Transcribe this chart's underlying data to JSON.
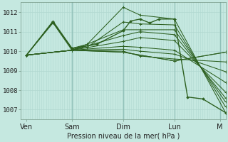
{
  "xlabel": "Pression niveau de la mer( hPa )",
  "bg_color": "#c5e8e0",
  "grid_color_minor": "#b0d8d0",
  "grid_color_major": "#90c0b8",
  "line_color": "#2d6020",
  "ylim": [
    1006.5,
    1012.5
  ],
  "xlim": [
    0,
    108
  ],
  "xtick_positions": [
    3,
    27,
    54,
    81,
    105
  ],
  "xtick_labels": [
    "Ven",
    "Sam",
    "Dim",
    "Lun",
    "M"
  ],
  "ytick_values": [
    1007,
    1008,
    1009,
    1010,
    1011,
    1012
  ],
  "vline_positions": [
    27,
    54,
    81,
    105
  ],
  "origin_x": 3,
  "origin_y": 1009.8,
  "lines": [
    {
      "x": [
        3,
        17,
        27,
        35,
        54,
        63,
        81,
        108
      ],
      "y": [
        1009.8,
        1011.55,
        1010.15,
        1010.35,
        1012.25,
        1011.85,
        1011.65,
        1006.85
      ]
    },
    {
      "x": [
        3,
        17,
        27,
        35,
        54,
        63,
        81,
        108
      ],
      "y": [
        1009.8,
        1011.5,
        1010.1,
        1010.2,
        1011.5,
        1011.4,
        1011.35,
        1007.15
      ]
    },
    {
      "x": [
        3,
        17,
        27,
        54,
        63,
        81,
        108
      ],
      "y": [
        1009.8,
        1011.45,
        1010.05,
        1011.1,
        1011.1,
        1011.1,
        1007.4
      ]
    },
    {
      "x": [
        3,
        27,
        54,
        63,
        81,
        108
      ],
      "y": [
        1009.8,
        1010.05,
        1010.8,
        1011.0,
        1010.85,
        1007.6
      ]
    },
    {
      "x": [
        3,
        27,
        54,
        63,
        81,
        108
      ],
      "y": [
        1009.8,
        1010.05,
        1010.5,
        1010.7,
        1010.55,
        1007.9
      ]
    },
    {
      "x": [
        3,
        27,
        54,
        63,
        81,
        108
      ],
      "y": [
        1009.8,
        1010.05,
        1010.25,
        1010.2,
        1010.05,
        1008.4
      ]
    },
    {
      "x": [
        3,
        27,
        54,
        63,
        81,
        108
      ],
      "y": [
        1009.8,
        1010.05,
        1010.1,
        1010.0,
        1009.85,
        1008.95
      ]
    },
    {
      "x": [
        3,
        27,
        54,
        63,
        81,
        108
      ],
      "y": [
        1009.8,
        1010.05,
        1010.0,
        1009.75,
        1009.6,
        1009.45
      ]
    },
    {
      "x": [
        3,
        27,
        54,
        81,
        108
      ],
      "y": [
        1009.8,
        1010.05,
        1009.95,
        1009.5,
        1009.95
      ]
    },
    {
      "x": [
        3,
        27,
        54,
        81,
        108
      ],
      "y": [
        1009.8,
        1010.05,
        1009.95,
        1009.5,
        1009.95
      ]
    },
    {
      "x": [
        3,
        17,
        27,
        40,
        54,
        58,
        63,
        68,
        73,
        81,
        88,
        96,
        108
      ],
      "y": [
        1009.8,
        1011.5,
        1010.15,
        1010.35,
        1011.05,
        1011.55,
        1011.65,
        1011.45,
        1011.65,
        1011.65,
        1007.65,
        1007.55,
        1006.85
      ]
    }
  ]
}
